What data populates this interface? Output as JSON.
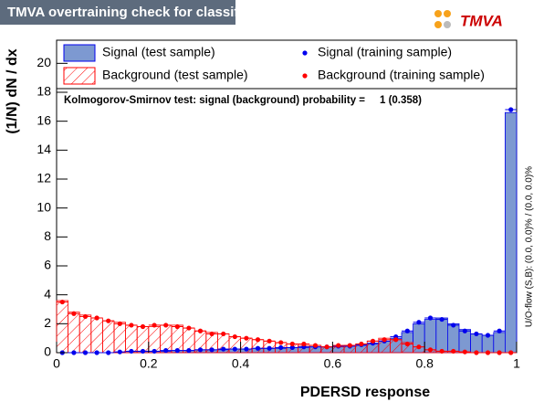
{
  "chart_data": {
    "type": "histogram",
    "title": "TMVA overtraining check for classifier: PDERSD",
    "logo": "TMVA",
    "x_label": "PDERSD response",
    "y_label": "(1/N) dN / dx",
    "annotation": "Kolmogorov-Smirnov test: signal (background) probability =     1 (0.358)",
    "side_note": "U/O-flow (S,B): (0.0, 0.0)% / (0.0, 0.0)%",
    "bins": [
      0,
      0.025,
      0.05,
      0.075,
      0.1,
      0.125,
      0.15,
      0.175,
      0.2,
      0.225,
      0.25,
      0.275,
      0.3,
      0.325,
      0.35,
      0.375,
      0.4,
      0.425,
      0.45,
      0.475,
      0.5,
      0.525,
      0.55,
      0.575,
      0.6,
      0.625,
      0.65,
      0.675,
      0.7,
      0.725,
      0.75,
      0.775,
      0.8,
      0.825,
      0.85,
      0.875,
      0.9,
      0.925,
      0.95,
      0.975,
      1
    ],
    "xlim": [
      0,
      1
    ],
    "ylim": [
      0,
      21.6
    ],
    "xticks": [
      0,
      0.2,
      0.4,
      0.6,
      0.8,
      1
    ],
    "yticks": [
      0,
      2,
      4,
      6,
      8,
      10,
      12,
      14,
      16,
      18,
      20
    ],
    "series": [
      {
        "name": "Signal (test sample)",
        "style": "filled",
        "color": "#0000ee",
        "fill": "#7d99d1",
        "values": [
          0,
          0,
          0,
          0,
          0,
          0.05,
          0.1,
          0.1,
          0.1,
          0.1,
          0.15,
          0.15,
          0.2,
          0.2,
          0.2,
          0.25,
          0.25,
          0.3,
          0.3,
          0.3,
          0.35,
          0.35,
          0.4,
          0.4,
          0.4,
          0.45,
          0.5,
          0.6,
          0.8,
          1.0,
          1.4,
          2.0,
          2.3,
          2.4,
          2.0,
          1.6,
          1.3,
          1.2,
          1.4,
          16.6
        ]
      },
      {
        "name": "Background (test sample)",
        "style": "hatched",
        "color": "#ff0000",
        "values": [
          3.6,
          2.8,
          2.6,
          2.4,
          2.2,
          2.1,
          1.9,
          1.8,
          1.8,
          1.9,
          1.9,
          1.7,
          1.5,
          1.4,
          1.3,
          1.1,
          1.0,
          0.9,
          0.8,
          0.7,
          0.6,
          0.5,
          0.5,
          0.4,
          0.4,
          0.5,
          0.6,
          0.8,
          1.0,
          0.9,
          0.7,
          0.4,
          0.2,
          0.1,
          0.1,
          0.05,
          0,
          0,
          0,
          0
        ]
      },
      {
        "name": "Signal (training sample)",
        "style": "points",
        "color": "#0000ee",
        "values": [
          0,
          0,
          0,
          0,
          0,
          0.05,
          0.1,
          0.1,
          0.1,
          0.15,
          0.15,
          0.15,
          0.2,
          0.2,
          0.25,
          0.25,
          0.25,
          0.3,
          0.3,
          0.35,
          0.35,
          0.4,
          0.4,
          0.4,
          0.45,
          0.45,
          0.55,
          0.65,
          0.8,
          1.1,
          1.5,
          2.1,
          2.4,
          2.3,
          1.9,
          1.5,
          1.3,
          1.2,
          1.5,
          16.8
        ]
      },
      {
        "name": "Background (training sample)",
        "style": "points",
        "color": "#ff0000",
        "values": [
          3.5,
          2.7,
          2.5,
          2.4,
          2.2,
          2.0,
          1.9,
          1.8,
          1.9,
          1.9,
          1.8,
          1.7,
          1.5,
          1.3,
          1.3,
          1.1,
          1.0,
          0.9,
          0.8,
          0.7,
          0.6,
          0.6,
          0.5,
          0.4,
          0.5,
          0.5,
          0.6,
          0.8,
          0.9,
          0.9,
          0.6,
          0.4,
          0.2,
          0.1,
          0.1,
          0.05,
          0,
          0,
          0,
          0
        ]
      }
    ]
  }
}
